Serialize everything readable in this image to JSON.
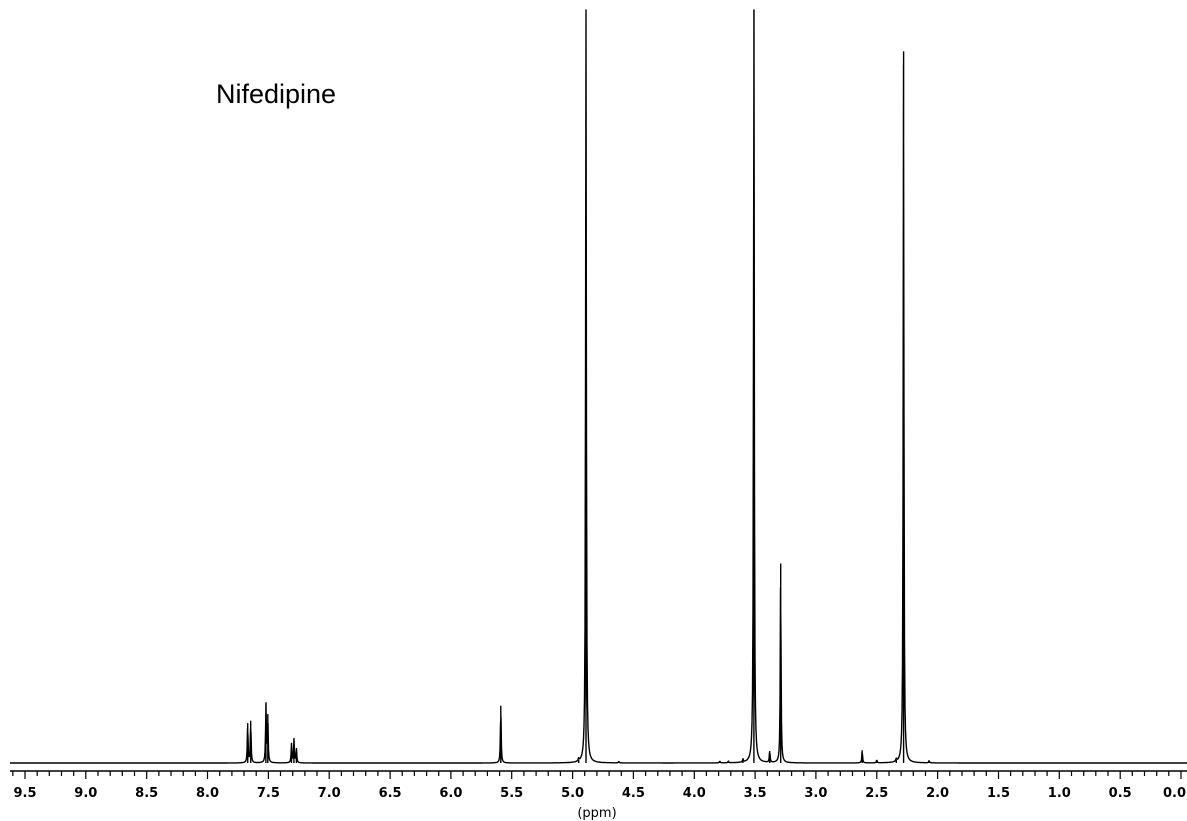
{
  "chart_data": {
    "type": "line",
    "title": "Nifedipine",
    "xlabel": "(ppm)",
    "ylabel": "",
    "x_reversed": true,
    "xlim": [
      0.0,
      9.75
    ],
    "ylim": [
      0,
      100
    ],
    "grid": false,
    "legend": "none",
    "x_tick_labels": [
      "9.5",
      "9.0",
      "8.5",
      "8.0",
      "7.5",
      "7.0",
      "6.5",
      "6.0",
      "5.5",
      "5.0",
      "4.5",
      "4.0",
      "3.5",
      "3.0",
      "2.5",
      "2.0",
      "1.5",
      "1.0",
      "0.5",
      "0.0"
    ],
    "x_ticks": [
      9.5,
      9.0,
      8.5,
      8.0,
      7.5,
      7.0,
      6.5,
      6.0,
      5.5,
      5.0,
      4.5,
      4.0,
      3.5,
      3.0,
      2.5,
      2.0,
      1.5,
      1.0,
      0.5,
      0.0
    ],
    "minor_tick_step": 0.1,
    "series": [
      {
        "color": "#000000",
        "peaks": [
          {
            "ppm": 7.67,
            "intensity": 5.3
          },
          {
            "ppm": 7.645,
            "intensity": 5.6
          },
          {
            "ppm": 7.52,
            "intensity": 7.8
          },
          {
            "ppm": 7.505,
            "intensity": 6.5
          },
          {
            "ppm": 7.31,
            "intensity": 2.5
          },
          {
            "ppm": 7.29,
            "intensity": 3.2
          },
          {
            "ppm": 7.27,
            "intensity": 2.0
          },
          {
            "ppm": 5.59,
            "intensity": 7.6
          },
          {
            "ppm": 4.95,
            "intensity": 0.4
          },
          {
            "ppm": 4.89,
            "intensity": 110
          },
          {
            "ppm": 4.62,
            "intensity": 0.2
          },
          {
            "ppm": 3.79,
            "intensity": 0.25
          },
          {
            "ppm": 3.72,
            "intensity": 0.25
          },
          {
            "ppm": 3.6,
            "intensity": 0.4
          },
          {
            "ppm": 3.51,
            "intensity": 110
          },
          {
            "ppm": 3.38,
            "intensity": 1.6
          },
          {
            "ppm": 3.29,
            "intensity": 26.5
          },
          {
            "ppm": 2.62,
            "intensity": 1.7
          },
          {
            "ppm": 2.5,
            "intensity": 0.4
          },
          {
            "ppm": 2.34,
            "intensity": 0.4
          },
          {
            "ppm": 2.28,
            "intensity": 94.5
          },
          {
            "ppm": 2.07,
            "intensity": 0.3
          }
        ]
      }
    ]
  }
}
